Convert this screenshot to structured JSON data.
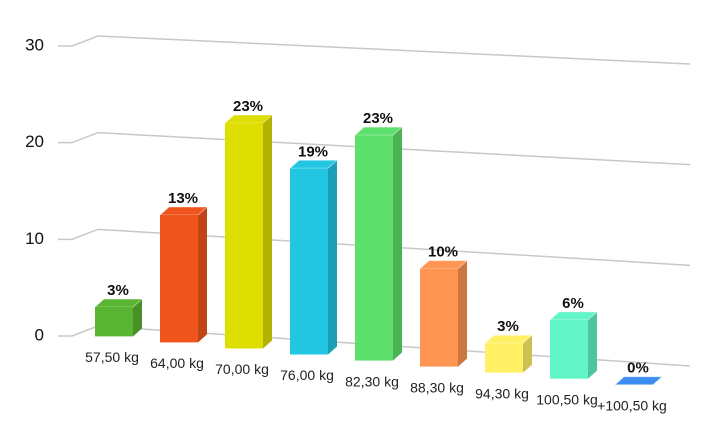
{
  "chart_data": {
    "type": "bar3d",
    "categories": [
      "57,50 kg",
      "64,00 kg",
      "70,00 kg",
      "76,00 kg",
      "82,30 kg",
      "88,30 kg",
      "94,30 kg",
      "100,50 kg",
      "+100,50 kg"
    ],
    "values": [
      3,
      13,
      23,
      19,
      23,
      10,
      3,
      6,
      0
    ],
    "value_labels": [
      "3%",
      "13%",
      "23%",
      "19%",
      "23%",
      "10%",
      "3%",
      "6%",
      "0%"
    ],
    "colors": [
      "#5ab532",
      "#ef551c",
      "#dede00",
      "#22c6e3",
      "#5ee06c",
      "#ff9552",
      "#fff066",
      "#62f5c8",
      "#3d8cef"
    ],
    "ylim": [
      0,
      30
    ],
    "yticks": [
      0,
      10,
      20,
      30
    ],
    "grid": true
  }
}
